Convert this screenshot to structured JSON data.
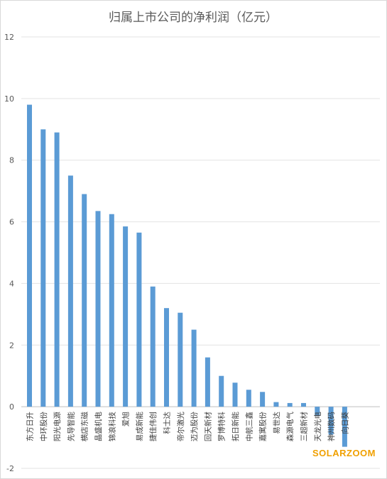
{
  "chart_data": {
    "type": "bar",
    "title": "归属上市公司的净利润（亿元）",
    "xlabel": "",
    "ylabel": "",
    "ylim": [
      -2,
      12
    ],
    "yticks": [
      -2,
      0,
      2,
      4,
      6,
      8,
      10,
      12
    ],
    "grid": true,
    "bar_color": "#5b9bd5",
    "categories": [
      "东方日升",
      "中环股份",
      "阳光电源",
      "先导智能",
      "横店东磁",
      "晶盛机电",
      "锦浪科技",
      "爱旭",
      "易成新能",
      "捷佳伟创",
      "科士达",
      "帝尔激光",
      "迈为股份",
      "回天新材",
      "罗博特科",
      "拓日新能",
      "中航三鑫",
      "嘉寓股份",
      "易世达",
      "森源电气",
      "三超新材",
      "天龙光电",
      "神州数码",
      "向日葵"
    ],
    "values": [
      9.8,
      9.0,
      8.9,
      7.5,
      6.9,
      6.35,
      6.25,
      5.85,
      5.65,
      3.9,
      3.2,
      3.05,
      2.5,
      1.6,
      1.0,
      0.78,
      0.55,
      0.48,
      0.15,
      0.12,
      0.12,
      -0.3,
      -0.9,
      -1.3
    ]
  },
  "watermark": {
    "text": "SOLARZOOM",
    "color": "#f0a000"
  }
}
